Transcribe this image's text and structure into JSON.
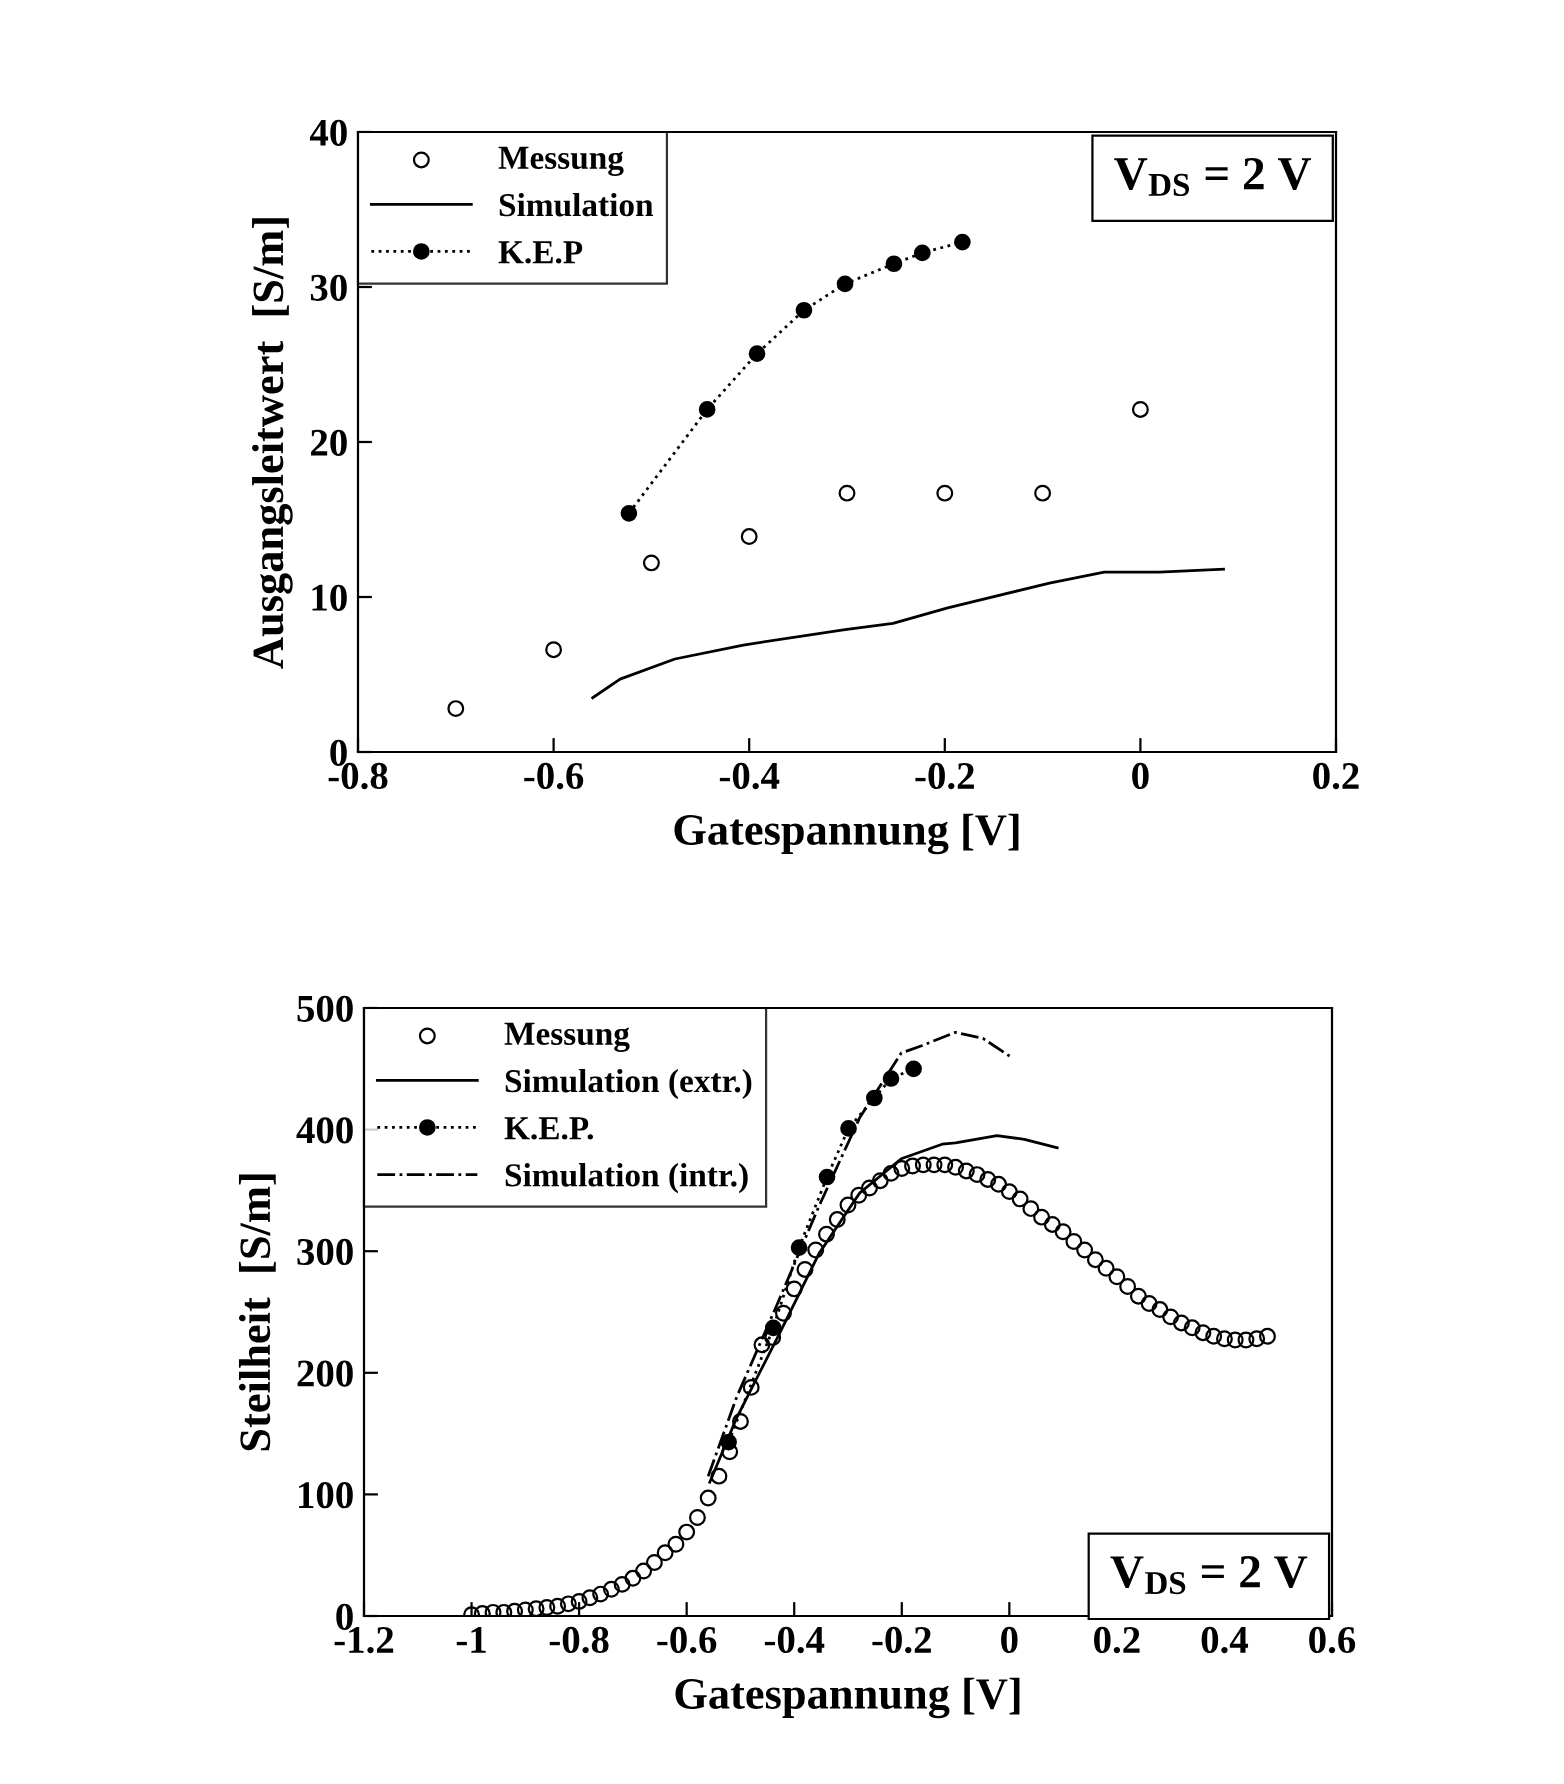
{
  "chart_data": [
    {
      "type": "line",
      "xlabel": "Gatespannung [V]",
      "ylabel": "Ausgangsleitwert  [S/m]",
      "xlim": [
        -0.8,
        0.2
      ],
      "ylim": [
        0,
        40
      ],
      "xticks": [
        -0.8,
        -0.6,
        -0.4,
        -0.2,
        0,
        0.2
      ],
      "yticks": [
        0,
        10,
        20,
        30,
        40
      ],
      "grid": false,
      "legend": "top left",
      "annotations": [
        "V$_{DS}$ = 2 V"
      ],
      "series": [
        {
          "name": "Messung",
          "type": "scatter",
          "marker": "circle",
          "color": "#000000",
          "x": [
            -0.7,
            -0.6,
            -0.5,
            -0.4,
            -0.3,
            -0.2,
            -0.1,
            0
          ],
          "values": [
            2.8,
            6.6,
            12.2,
            13.9,
            16.7,
            16.7,
            16.7,
            22.1
          ]
        },
        {
          "name": "Simulation",
          "type": "line",
          "line_style": "solid",
          "marker": "none",
          "color": "#000000",
          "x": [
            -0.56,
            -0.532,
            -0.476,
            -0.406,
            -0.302,
            -0.253,
            -0.197,
            -0.093,
            -0.037,
            0.019,
            0.085
          ],
          "values": [
            3.5,
            4.7,
            6.0,
            6.9,
            7.9,
            8.3,
            9.3,
            10.9,
            11.6,
            11.6,
            11.8
          ]
        },
        {
          "name": "K.E.P",
          "type": "line",
          "line_style": "dotted",
          "marker": "circle",
          "color": "#000000",
          "x": [
            -0.523,
            -0.443,
            -0.392,
            -0.344,
            -0.302,
            -0.252,
            -0.223,
            -0.182
          ],
          "values": [
            15.4,
            22.1,
            25.7,
            28.5,
            30.2,
            31.5,
            32.2,
            32.9
          ]
        }
      ]
    },
    {
      "type": "line",
      "xlabel": "Gatespannung [V]",
      "ylabel": "Steilheit  [S/m]",
      "xlim": [
        -1.2,
        0.6
      ],
      "ylim": [
        0,
        500
      ],
      "xticks": [
        -1.2,
        -1,
        -0.8,
        -0.6,
        -0.4,
        -0.2,
        0,
        0.2,
        0.4,
        0.6
      ],
      "yticks": [
        0,
        100,
        200,
        300,
        400,
        500
      ],
      "grid": false,
      "legend": "top left",
      "annotations": [
        "V$_{DS}$ = 2 V"
      ],
      "series": [
        {
          "name": "Messung",
          "type": "scatter",
          "marker": "circle",
          "color": "#000000",
          "x": [
            -1.0,
            -0.98,
            -0.96,
            -0.94,
            -0.92,
            -0.9,
            -0.88,
            -0.86,
            -0.84,
            -0.82,
            -0.8,
            -0.78,
            -0.76,
            -0.74,
            -0.72,
            -0.7,
            -0.68,
            -0.66,
            -0.64,
            -0.62,
            -0.6,
            -0.58,
            -0.56,
            -0.54,
            -0.52,
            -0.5,
            -0.48,
            -0.46,
            -0.44,
            -0.42,
            -0.4,
            -0.38,
            -0.36,
            -0.34,
            -0.32,
            -0.3,
            -0.28,
            -0.26,
            -0.24,
            -0.22,
            -0.2,
            -0.18,
            -0.16,
            -0.14,
            -0.12,
            -0.1,
            -0.08,
            -0.06,
            -0.04,
            -0.02,
            0,
            0.02,
            0.04,
            0.06,
            0.08,
            0.1,
            0.12,
            0.14,
            0.16,
            0.18,
            0.2,
            0.22,
            0.24,
            0.26,
            0.28,
            0.3,
            0.32,
            0.34,
            0.36,
            0.38,
            0.4,
            0.42,
            0.44,
            0.46,
            0.48
          ],
          "values": [
            1,
            2,
            3,
            3,
            4,
            5,
            6,
            7,
            8,
            10,
            12,
            15,
            18,
            22,
            26,
            31,
            37,
            44,
            52,
            59,
            69,
            81,
            97,
            115,
            135,
            160,
            188,
            223,
            229,
            249,
            269,
            285,
            301,
            314,
            326,
            338,
            346,
            352,
            358,
            364,
            368,
            370,
            371,
            371,
            371,
            369,
            366,
            363,
            359,
            355,
            349,
            343,
            335,
            328,
            322,
            316,
            308,
            301,
            293,
            286,
            279,
            271,
            263,
            257,
            252,
            246,
            241,
            237,
            233,
            230,
            228,
            227,
            227,
            228,
            230
          ]
        },
        {
          "name": "Simulation (extr.)",
          "type": "line",
          "line_style": "solid",
          "marker": "none",
          "color": "#000000",
          "x": [
            -0.557,
            -0.507,
            -0.43,
            -0.354,
            -0.278,
            -0.201,
            -0.125,
            -0.1,
            -0.023,
            0.028,
            0.089
          ],
          "values": [
            110,
            163,
            230,
            298,
            348,
            376,
            388,
            389,
            395,
            392,
            385
          ]
        },
        {
          "name": "K.E.P.",
          "type": "line",
          "line_style": "dotted",
          "marker": "circle",
          "color": "#000000",
          "x": [
            -0.522,
            -0.439,
            -0.391,
            -0.339,
            -0.299,
            -0.251,
            -0.22,
            -0.178
          ],
          "values": [
            143,
            237,
            303,
            361,
            401,
            426,
            442,
            450
          ]
        },
        {
          "name": "Simulation (intr.)",
          "type": "line",
          "line_style": "dashdot",
          "marker": "none",
          "color": "#000000",
          "x": [
            -0.56,
            -0.507,
            -0.43,
            -0.354,
            -0.278,
            -0.201,
            -0.163,
            -0.1,
            -0.049,
            0.002
          ],
          "values": [
            115,
            180,
            258,
            337,
            410,
            463,
            469,
            480,
            475,
            460
          ]
        }
      ]
    }
  ]
}
